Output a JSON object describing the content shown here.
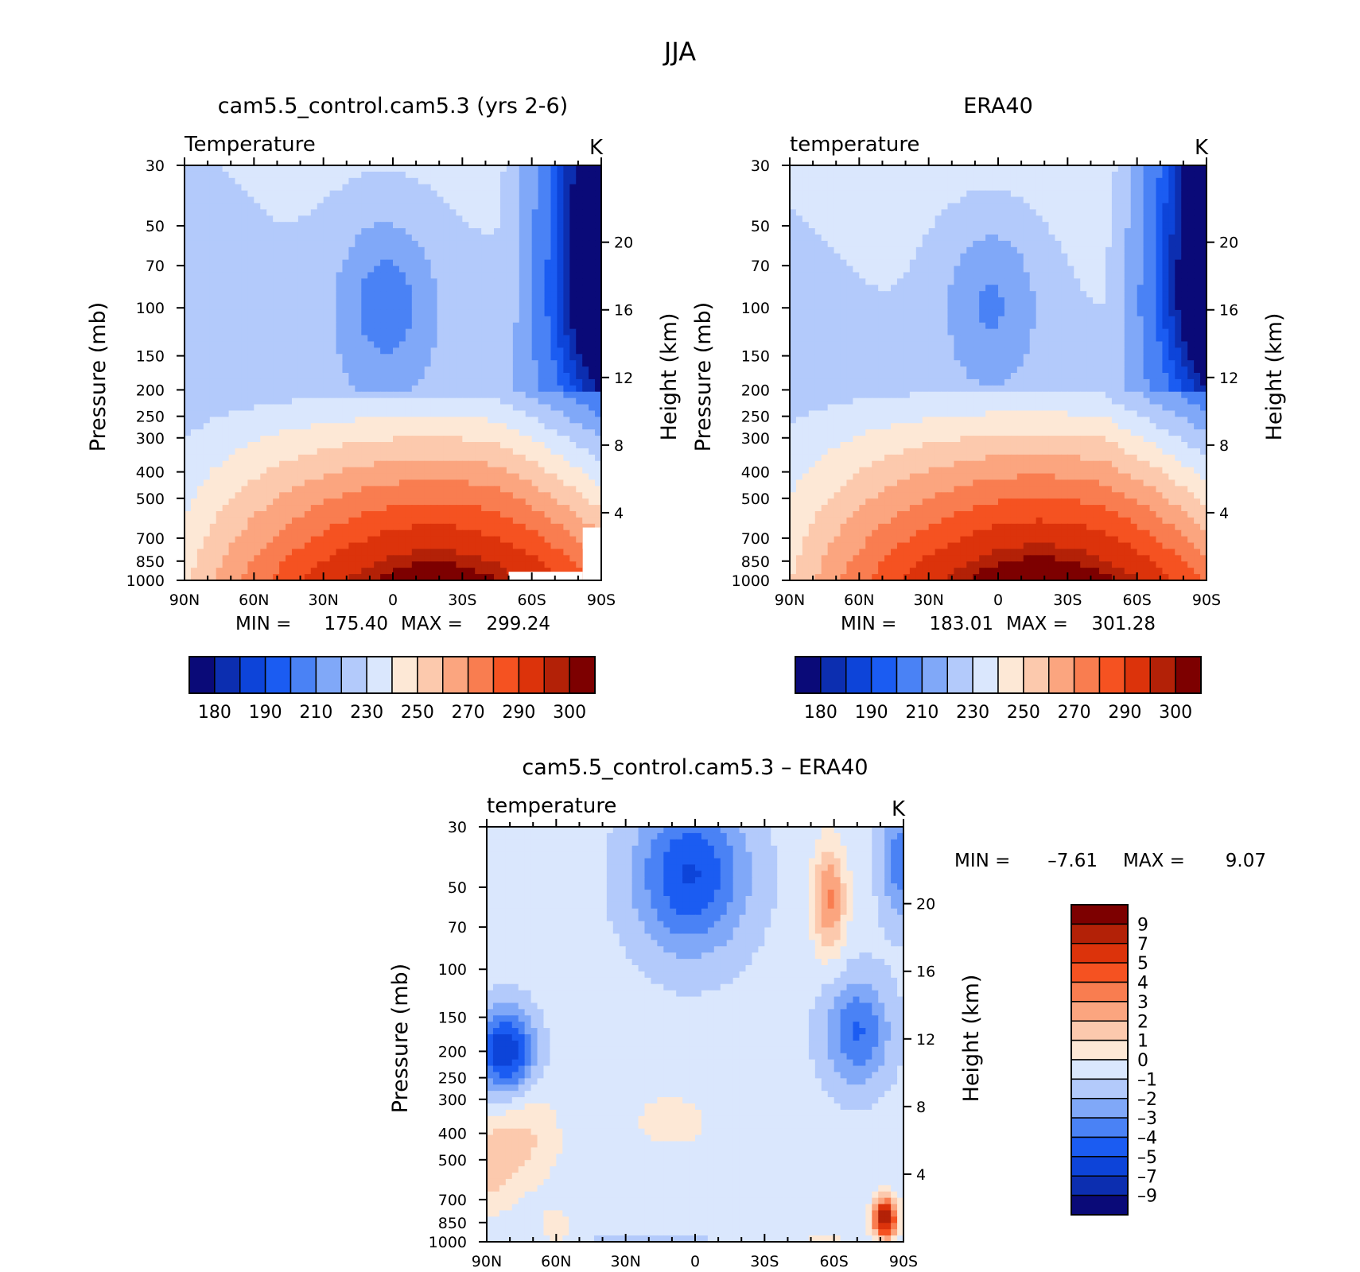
{
  "figure": {
    "title": "JJA"
  },
  "chart_data": [
    {
      "type": "heatmap",
      "id": "model",
      "title": "cam5.5_control.cam5.3 (yrs 2-6)",
      "left_label": "Temperature",
      "units": "K",
      "xlabel": "",
      "ylabel": "Pressure (mb)",
      "y2label": "Height (km)",
      "x_ticks": [
        "90N",
        "60N",
        "30N",
        "0",
        "30S",
        "60S",
        "90S"
      ],
      "y_ticks": [
        "30",
        "50",
        "70",
        "100",
        "150",
        "200",
        "250",
        "300",
        "400",
        "500",
        "700",
        "850",
        "1000"
      ],
      "y2_ticks": [
        "20",
        "16",
        "12",
        "8",
        "4"
      ],
      "xlim": [
        90,
        -90
      ],
      "ylim": [
        1000,
        30
      ],
      "y_scale": "log",
      "min_label": "MIN =",
      "min_value": "175.40",
      "max_label": "MAX =",
      "max_value": "299.24",
      "colorbar": {
        "orientation": "horizontal",
        "levels": [
          175,
          180,
          185,
          190,
          200,
          210,
          220,
          230,
          240,
          250,
          260,
          270,
          280,
          290,
          295,
          300
        ],
        "tick_labels": [
          "180",
          "190",
          "210",
          "230",
          "250",
          "270",
          "290",
          "300"
        ],
        "colors": [
          "#0a0a78",
          "#0c2eb0",
          "#0d44d9",
          "#1b5cf2",
          "#4a82f5",
          "#80a8f8",
          "#b3cafb",
          "#dae7fd",
          "#fde8d6",
          "#fcc9ad",
          "#fba57f",
          "#f97d50",
          "#f55221",
          "#dc330b",
          "#b32107",
          "#7d0000"
        ]
      }
    },
    {
      "type": "heatmap",
      "id": "obs",
      "title": "ERA40",
      "left_label": "temperature",
      "units": "K",
      "xlabel": "",
      "ylabel": "Pressure (mb)",
      "y2label": "Height (km)",
      "x_ticks": [
        "90N",
        "60N",
        "30N",
        "0",
        "30S",
        "60S",
        "90S"
      ],
      "y_ticks": [
        "30",
        "50",
        "70",
        "100",
        "150",
        "200",
        "250",
        "300",
        "400",
        "500",
        "700",
        "850",
        "1000"
      ],
      "y2_ticks": [
        "20",
        "16",
        "12",
        "8",
        "4"
      ],
      "xlim": [
        90,
        -90
      ],
      "ylim": [
        1000,
        30
      ],
      "y_scale": "log",
      "min_label": "MIN =",
      "min_value": "183.01",
      "max_label": "MAX =",
      "max_value": "301.28",
      "colorbar": {
        "orientation": "horizontal",
        "levels": [
          175,
          180,
          185,
          190,
          200,
          210,
          220,
          230,
          240,
          250,
          260,
          270,
          280,
          290,
          295,
          300
        ],
        "tick_labels": [
          "180",
          "190",
          "210",
          "230",
          "250",
          "270",
          "290",
          "300"
        ],
        "colors": [
          "#0a0a78",
          "#0c2eb0",
          "#0d44d9",
          "#1b5cf2",
          "#4a82f5",
          "#80a8f8",
          "#b3cafb",
          "#dae7fd",
          "#fde8d6",
          "#fcc9ad",
          "#fba57f",
          "#f97d50",
          "#f55221",
          "#dc330b",
          "#b32107",
          "#7d0000"
        ]
      }
    },
    {
      "type": "heatmap",
      "id": "diff",
      "title": "cam5.5_control.cam5.3 – ERA40",
      "left_label": "temperature",
      "units": "K",
      "xlabel": "",
      "ylabel": "Pressure (mb)",
      "y2label": "Height (km)",
      "x_ticks": [
        "90N",
        "60N",
        "30N",
        "0",
        "30S",
        "60S",
        "90S"
      ],
      "y_ticks": [
        "30",
        "50",
        "70",
        "100",
        "150",
        "200",
        "250",
        "300",
        "400",
        "500",
        "700",
        "850",
        "1000"
      ],
      "y2_ticks": [
        "20",
        "16",
        "12",
        "8",
        "4"
      ],
      "xlim": [
        90,
        -90
      ],
      "ylim": [
        1000,
        30
      ],
      "y_scale": "log",
      "min_label": "MIN =",
      "min_value": "–7.61",
      "max_label": "MAX =",
      "max_value": "9.07",
      "colorbar": {
        "orientation": "vertical",
        "levels": [
          -9,
          -7,
          -5,
          -4,
          -3,
          -2,
          -1,
          0,
          1,
          2,
          3,
          4,
          5,
          7,
          9
        ],
        "tick_labels": [
          "–9",
          "–7",
          "–5",
          "–4",
          "–3",
          "–2",
          "–1",
          "0",
          "1",
          "2",
          "3",
          "4",
          "5",
          "7",
          "9"
        ],
        "colors": [
          "#0a0a78",
          "#0c2eb0",
          "#0d44d9",
          "#1b5cf2",
          "#4a82f5",
          "#80a8f8",
          "#b3cafb",
          "#dae7fd",
          "#fde8d6",
          "#fcc9ad",
          "#fba57f",
          "#f97d50",
          "#f55221",
          "#dc330b",
          "#b32107",
          "#7d0000"
        ]
      }
    }
  ]
}
